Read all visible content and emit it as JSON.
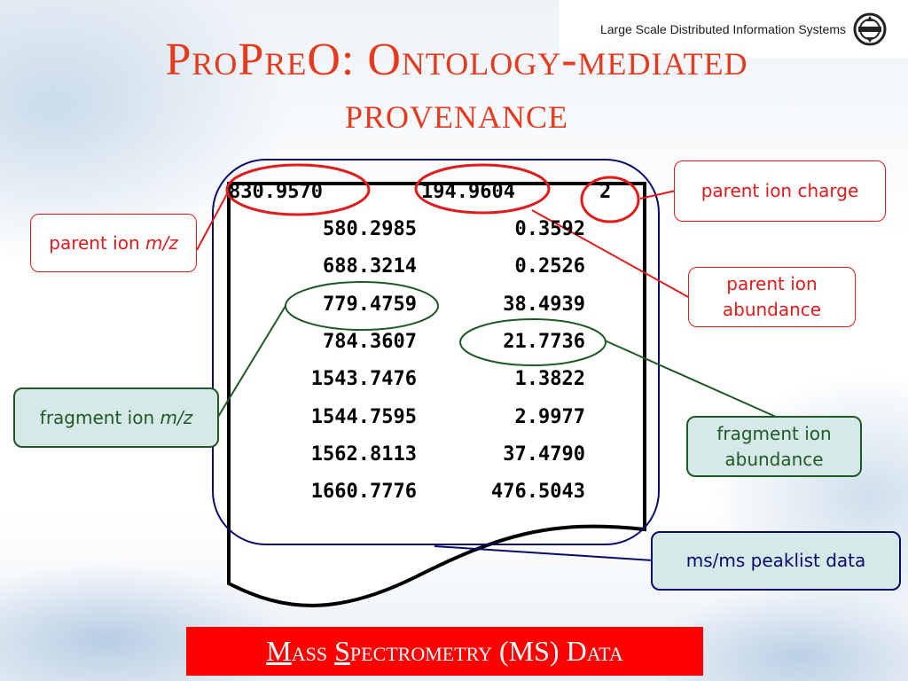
{
  "header": {
    "text": "Large Scale Distributed Information Systems",
    "logo_icon": "lsdis-logo-icon"
  },
  "title": {
    "line1": "ProPreO: Ontology-mediated",
    "line2": "provenance"
  },
  "peaklist": {
    "parent_row": {
      "mz": "830.9570",
      "abundance": "194.9604",
      "charge": "2"
    },
    "rows": [
      {
        "mz": "580.2985",
        "abundance": "0.3592"
      },
      {
        "mz": "688.3214",
        "abundance": "0.2526"
      },
      {
        "mz": "779.4759",
        "abundance": "38.4939"
      },
      {
        "mz": "784.3607",
        "abundance": "21.7736"
      },
      {
        "mz": "1543.7476",
        "abundance": "1.3822"
      },
      {
        "mz": "1544.7595",
        "abundance": "2.9977"
      },
      {
        "mz": "1562.8113",
        "abundance": "37.4790"
      },
      {
        "mz": "1660.7776",
        "abundance": "476.5043"
      }
    ]
  },
  "labels": {
    "parent_ion_mz": {
      "text": "parent ion ",
      "italic": "m/z"
    },
    "parent_ion_charge": "parent ion charge",
    "parent_ion_abundance": {
      "line1": "parent ion",
      "line2": "abundance"
    },
    "fragment_ion_mz": {
      "text": "fragment ion ",
      "italic": "m/z"
    },
    "fragment_ion_abundance": {
      "line1": "fragment ion",
      "line2": "abundance"
    },
    "peaklist_data": "ms/ms peaklist data"
  },
  "footer": {
    "m": "M",
    "ass": "ass ",
    "s": "S",
    "rest": "pectrometry (MS) Data"
  },
  "colors": {
    "title": "#e63a1e",
    "red": "#e41a1a",
    "green": "#1f5a26",
    "navy": "#0a0a70",
    "teal_fill": "#d6e8e7",
    "footer_bg": "#ff0000"
  }
}
